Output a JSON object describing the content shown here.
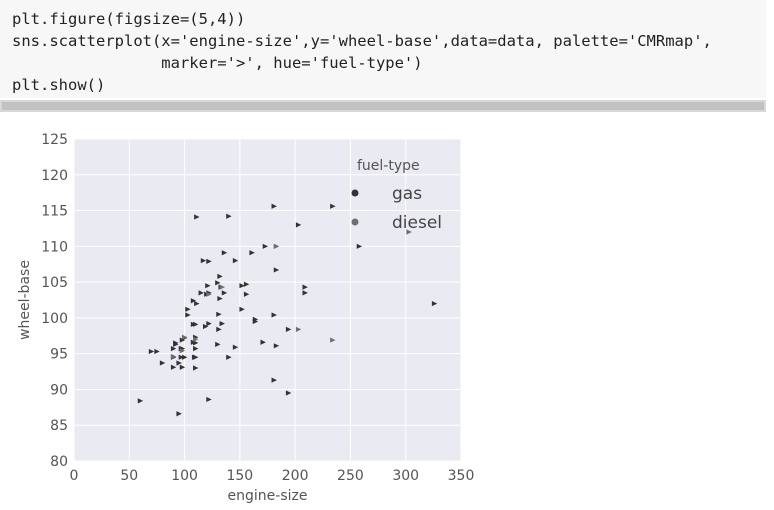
{
  "code": {
    "lines": [
      "plt.figure(figsize=(5,4))",
      "sns.scatterplot(x='engine-size',y='wheel-base',data=data, palette='CMRmap',",
      "                marker='>', hue='fuel-type')",
      "plt.show()"
    ]
  },
  "chart_data": {
    "type": "scatter",
    "xlabel": "engine-size",
    "ylabel": "wheel-base",
    "xlim": [
      0,
      350
    ],
    "ylim": [
      80,
      125
    ],
    "xticks": [
      "0",
      "50",
      "100",
      "150",
      "200",
      "250",
      "300",
      "350"
    ],
    "yticks": [
      "80",
      "85",
      "90",
      "95",
      "100",
      "105",
      "110",
      "115",
      "120",
      "125"
    ],
    "grid": true,
    "legend": {
      "title": "fuel-type",
      "placement": "top-right",
      "entries": [
        "gas",
        "diesel"
      ]
    },
    "series": [
      {
        "name": "gas",
        "color": "#333333",
        "x": [
          60,
          70,
          75,
          80,
          90,
          90,
          90,
          92,
          92,
          95,
          95,
          97,
          97,
          98,
          98,
          98,
          100,
          100,
          103,
          103,
          108,
          108,
          108,
          109,
          110,
          110,
          110,
          110,
          110,
          110,
          111,
          111,
          115,
          117,
          119,
          120,
          121,
          122,
          122,
          122,
          122,
          130,
          130,
          131,
          131,
          132,
          132,
          133,
          134,
          136,
          136,
          140,
          140,
          146,
          146,
          152,
          152,
          156,
          156,
          161,
          164,
          164,
          171,
          173,
          181,
          181,
          181,
          183,
          183,
          194,
          194,
          203,
          209,
          209,
          234,
          258,
          326
        ],
        "y": [
          88.4,
          95.3,
          95.3,
          93.7,
          94.5,
          93.1,
          95.7,
          96.3,
          96.5,
          93.7,
          86.6,
          94.5,
          95.7,
          96.9,
          95.7,
          93.1,
          97.2,
          94.5,
          100.4,
          101.2,
          102.4,
          99.1,
          96.6,
          94.5,
          99.1,
          97.3,
          96.5,
          94.5,
          93.0,
          95.7,
          102.0,
          114.1,
          103.5,
          108.0,
          98.8,
          103.3,
          104.5,
          99.2,
          103.5,
          107.9,
          88.6,
          96.3,
          104.9,
          100.5,
          98.4,
          105.8,
          102.7,
          104.3,
          99.2,
          109.1,
          103.5,
          94.5,
          114.2,
          108.0,
          95.9,
          104.5,
          101.2,
          104.7,
          103.3,
          109.1,
          99.5,
          99.8,
          96.6,
          110.0,
          91.3,
          100.4,
          115.6,
          106.7,
          96.1,
          89.5,
          98.4,
          113.0,
          104.3,
          103.5,
          115.6,
          110.0,
          102.0
        ]
      },
      {
        "name": "diesel",
        "color": "#6e6e6e",
        "x": [
          90,
          98,
          100,
          110,
          122,
          134,
          183,
          183,
          203,
          234,
          303
        ],
        "y": [
          94.6,
          95.4,
          97.3,
          97.0,
          103.3,
          104.3,
          110.0,
          110.0,
          98.4,
          96.9,
          112.0
        ]
      }
    ]
  }
}
